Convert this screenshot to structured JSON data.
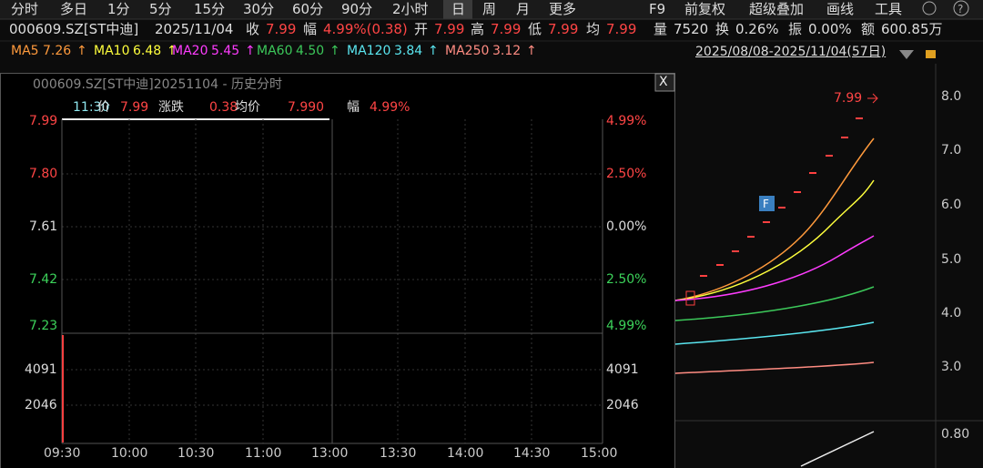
{
  "toolbar": {
    "tabs": [
      "分时",
      "多日",
      "1分",
      "5分",
      "15分",
      "30分",
      "60分",
      "90分",
      "2小时",
      "日",
      "周",
      "月",
      "更多"
    ],
    "selected": "日",
    "right": [
      "F9",
      "前复权",
      "超级叠加",
      "画线",
      "工具"
    ]
  },
  "quote": {
    "code": "000609.SZ[ST中迪]",
    "date": "2025/11/04",
    "items": [
      [
        "收",
        "7.99"
      ],
      [
        "幅",
        "4.99%(0.38)"
      ],
      [
        "开",
        "7.99"
      ],
      [
        "高",
        "7.99"
      ],
      [
        "低",
        "7.99"
      ],
      [
        "均",
        "7.99"
      ],
      [
        "量",
        "7520"
      ],
      [
        "换",
        "0.26%"
      ],
      [
        "振",
        "0.00%"
      ],
      [
        "额",
        "600.85万"
      ]
    ]
  },
  "ma": [
    {
      "name": "MA5",
      "value": "7.26",
      "color": "#ff9a3c"
    },
    {
      "name": "MA10",
      "value": "6.48",
      "color": "#ffff3c"
    },
    {
      "name": "MA20",
      "value": "5.45",
      "color": "#ff3cff"
    },
    {
      "name": "MA60",
      "value": "4.50",
      "color": "#3cc85a"
    },
    {
      "name": "MA120",
      "value": "3.84",
      "color": "#5ae6f0"
    },
    {
      "name": "MA250",
      "value": "3.12",
      "color": "#ff8c82"
    }
  ],
  "ma_arrow": "↑",
  "range": "2025/08/08-2025/11/04(57日)",
  "kline": {
    "price_axis": [
      "8.0",
      "7.0",
      "6.0",
      "5.0",
      "4.0",
      "3.0"
    ],
    "lower_axis": [
      "0.80"
    ],
    "last_price": "7.99",
    "marker": "F"
  },
  "popup": {
    "title": "000609.SZ[ST中迪]20251104 - 历史分时",
    "close": "X",
    "info": [
      [
        "",
        "11:30"
      ],
      [
        "价",
        "7.99"
      ],
      [
        "涨跌",
        "0.38"
      ],
      [
        "均价",
        "7.990"
      ],
      [
        "幅",
        "4.99%"
      ]
    ],
    "left_axis": [
      "7.99",
      "7.80",
      "7.61",
      "7.42",
      "7.23",
      "4091",
      "2046"
    ],
    "right_axis": [
      "4.99%",
      "2.50%",
      "0.00%",
      "2.50%",
      "4.99%",
      "4091",
      "2046"
    ],
    "time_axis": [
      "09:30",
      "10:00",
      "10:30",
      "11:00",
      "13:00",
      "13:30",
      "14:00",
      "14:30",
      "15:00"
    ]
  }
}
